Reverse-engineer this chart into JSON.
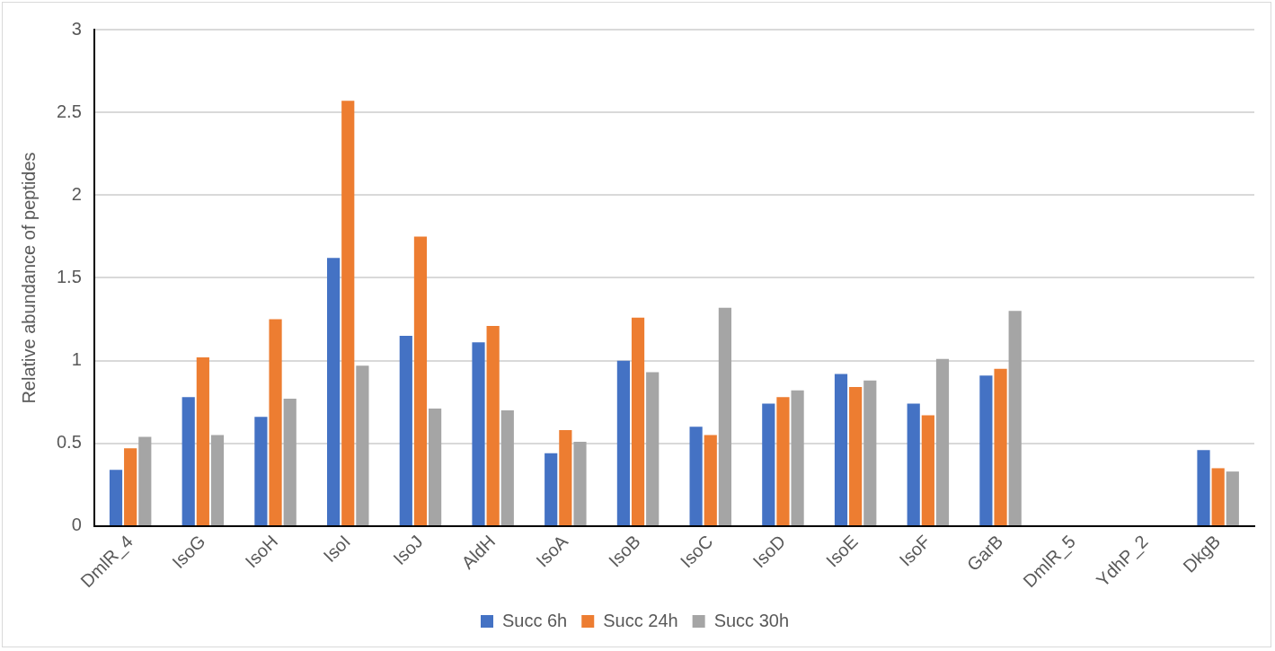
{
  "chart_data": {
    "type": "bar",
    "ylabel": "Relative abundance of peptides",
    "categories": [
      "DmlR_4",
      "IsoG",
      "IsoH",
      "IsoI",
      "IsoJ",
      "AldH",
      "IsoA",
      "IsoB",
      "IsoC",
      "IsoD",
      "IsoE",
      "IsoF",
      "GarB",
      "DmlR_5",
      "YdhP_2",
      "DkgB"
    ],
    "series": [
      {
        "name": "Succ 6h",
        "color": "#4472c4",
        "values": [
          0.34,
          0.78,
          0.66,
          1.62,
          1.15,
          1.11,
          0.44,
          1.0,
          0.6,
          0.74,
          0.92,
          0.74,
          0.91,
          0,
          0,
          0.46
        ]
      },
      {
        "name": "Succ 24h",
        "color": "#ed7d31",
        "values": [
          0.47,
          1.02,
          1.25,
          2.57,
          1.75,
          1.21,
          0.58,
          1.26,
          0.55,
          0.78,
          0.84,
          0.67,
          0.95,
          0,
          0,
          0.35
        ]
      },
      {
        "name": "Succ 30h",
        "color": "#a5a5a5",
        "values": [
          0.54,
          0.55,
          0.77,
          0.97,
          0.71,
          0.7,
          0.51,
          0.93,
          1.32,
          0.82,
          0.88,
          1.01,
          1.3,
          0,
          0,
          0.33
        ]
      }
    ],
    "ylim": [
      0,
      3
    ],
    "yticks": [
      0,
      {
        "value": 0.5,
        "label": "0.5"
      },
      1,
      {
        "value": 1.5,
        "label": "1.5"
      },
      2,
      {
        "value": 2.5,
        "label": "2.5"
      },
      3
    ],
    "grid": "y",
    "legend": "bottom"
  }
}
